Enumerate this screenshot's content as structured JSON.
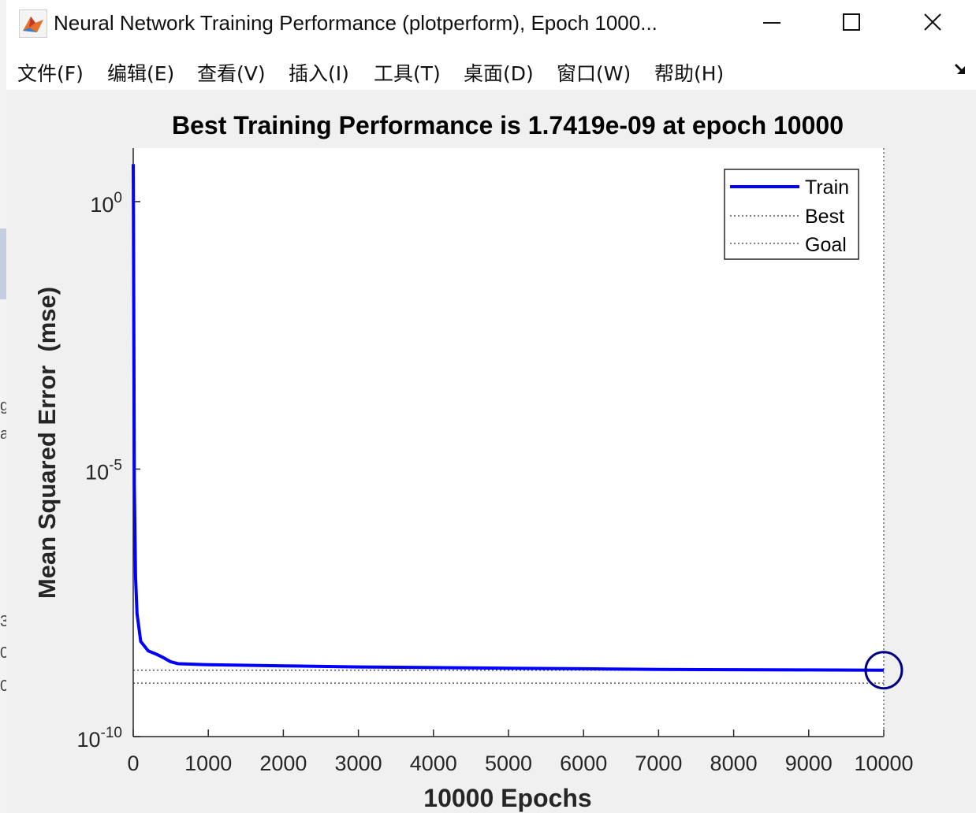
{
  "window": {
    "title": "Neural Network Training Performance (plotperform), Epoch 1000...",
    "icon": "matlab-icon",
    "controls": {
      "minimize": "minimize-icon",
      "maximize": "maximize-icon",
      "close": "close-icon"
    }
  },
  "menu": {
    "items": [
      {
        "label": "文件(F)"
      },
      {
        "label": "编辑(E)"
      },
      {
        "label": "查看(V)"
      },
      {
        "label": "插入(I)"
      },
      {
        "label": "工具(T)"
      },
      {
        "label": "桌面(D)"
      },
      {
        "label": "窗口(W)"
      },
      {
        "label": "帮助(H)"
      }
    ],
    "dock_icon": "dock-arrow-icon"
  },
  "chart_data": {
    "type": "line",
    "title": "Best Training Performance is 1.7419e-09 at epoch 10000",
    "xlabel": "10000 Epochs",
    "ylabel": "Mean Squared Error  (mse)",
    "y_scale": "log",
    "xlim": [
      0,
      10000
    ],
    "ylim": [
      1e-10,
      10
    ],
    "x_ticks": [
      "0",
      "1000",
      "2000",
      "3000",
      "4000",
      "5000",
      "6000",
      "7000",
      "8000",
      "9000",
      "10000"
    ],
    "y_ticks": [
      {
        "value": 1e-10,
        "base": "10",
        "exp": "-10"
      },
      {
        "value": 1e-05,
        "base": "10",
        "exp": "-5"
      },
      {
        "value": 1,
        "base": "10",
        "exp": "0"
      }
    ],
    "legend_position": "top-right",
    "series": [
      {
        "name": "Train",
        "color": "#0000ff",
        "style": "solid",
        "x": [
          0,
          3,
          8,
          15,
          30,
          50,
          100,
          200,
          300,
          400,
          500,
          600,
          1000,
          1500,
          2000,
          2500,
          3000,
          4000,
          5000,
          6000,
          7000,
          8000,
          9000,
          10000
        ],
        "y": [
          5,
          0.5,
          0.003,
          5e-06,
          1e-07,
          2e-08,
          6e-09,
          4e-09,
          3.5e-09,
          3e-09,
          2.5e-09,
          2.3e-09,
          2.2e-09,
          2.15e-09,
          2.1e-09,
          2.05e-09,
          2e-09,
          1.95e-09,
          1.9e-09,
          1.85e-09,
          1.8e-09,
          1.78e-09,
          1.76e-09,
          1.7419e-09
        ]
      },
      {
        "name": "Best",
        "color": "#000000",
        "style": "dotted",
        "y": 1.7419e-09,
        "x": 10000
      },
      {
        "name": "Goal",
        "color": "#000000",
        "style": "dotted",
        "y": 1e-09
      }
    ],
    "best_point": {
      "x": 10000,
      "y": 1.7419e-09,
      "marker": "circle",
      "color": "#000080"
    }
  },
  "stray_edge_text": [
    "g",
    "a",
    "3",
    "0",
    "0"
  ]
}
